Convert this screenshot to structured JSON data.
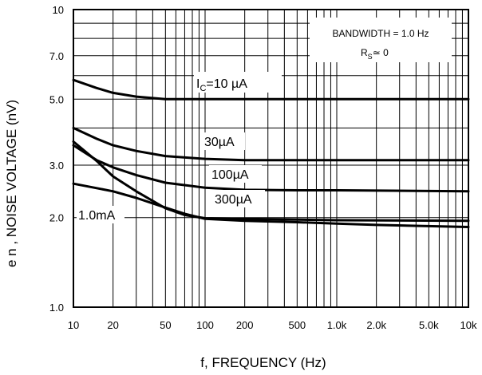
{
  "chart_data": {
    "type": "line",
    "xlabel": "f, FREQUENCY (Hz)",
    "ylabel": "e n , NOISE VOLTAGE (nV)",
    "xscale": "log",
    "yscale": "log",
    "xlim": [
      10,
      10000
    ],
    "ylim": [
      1.0,
      10
    ],
    "x_ticks": [
      10,
      20,
      50,
      100,
      200,
      500,
      1000,
      2000,
      5000,
      10000
    ],
    "x_tick_labels": [
      "10",
      "20",
      "50",
      "100",
      "200",
      "500",
      "1.0k",
      "2.0k",
      "5.0k",
      "10k"
    ],
    "y_ticks": [
      1.0,
      2.0,
      3.0,
      5.0,
      7.0,
      10
    ],
    "y_tick_labels": [
      "1.0",
      "2.0",
      "3.0",
      "5.0",
      "7.0",
      "10"
    ],
    "grid": true,
    "annotation_box": {
      "line1": "BANDWIDTH = 1.0 Hz",
      "line2_main": "R",
      "line2_sub": "S",
      "line2_rest": "≃ 0"
    },
    "series": [
      {
        "name": "I",
        "name_sub": "C",
        "name_rest": "=10 µA",
        "x": [
          10,
          15,
          20,
          30,
          50,
          70,
          100,
          200,
          500,
          1000,
          10000
        ],
        "y": [
          5.8,
          5.45,
          5.25,
          5.1,
          5.0,
          5.0,
          5.0,
          5.0,
          5.0,
          5.0,
          5.0
        ]
      },
      {
        "name": "30µA",
        "x": [
          10,
          15,
          20,
          30,
          50,
          100,
          200,
          500,
          1000,
          10000
        ],
        "y": [
          4.0,
          3.68,
          3.5,
          3.35,
          3.22,
          3.15,
          3.12,
          3.12,
          3.12,
          3.12
        ]
      },
      {
        "name": "100µA",
        "x": [
          10,
          15,
          20,
          30,
          50,
          100,
          200,
          500,
          1000,
          10000
        ],
        "y": [
          3.5,
          3.12,
          2.95,
          2.78,
          2.62,
          2.52,
          2.48,
          2.47,
          2.47,
          2.45
        ]
      },
      {
        "name": "300µA",
        "x": [
          10,
          15,
          20,
          30,
          50,
          70,
          100,
          200,
          500,
          1000,
          10000
        ],
        "y": [
          3.6,
          3.1,
          2.75,
          2.45,
          2.15,
          2.04,
          1.99,
          1.98,
          1.97,
          1.96,
          1.95
        ]
      },
      {
        "name": "1.0mA",
        "x": [
          10,
          20,
          30,
          50,
          70,
          100,
          200,
          500,
          1000,
          2000,
          10000
        ],
        "y": [
          2.6,
          2.45,
          2.33,
          2.16,
          2.06,
          1.98,
          1.95,
          1.93,
          1.91,
          1.89,
          1.86
        ]
      }
    ]
  }
}
